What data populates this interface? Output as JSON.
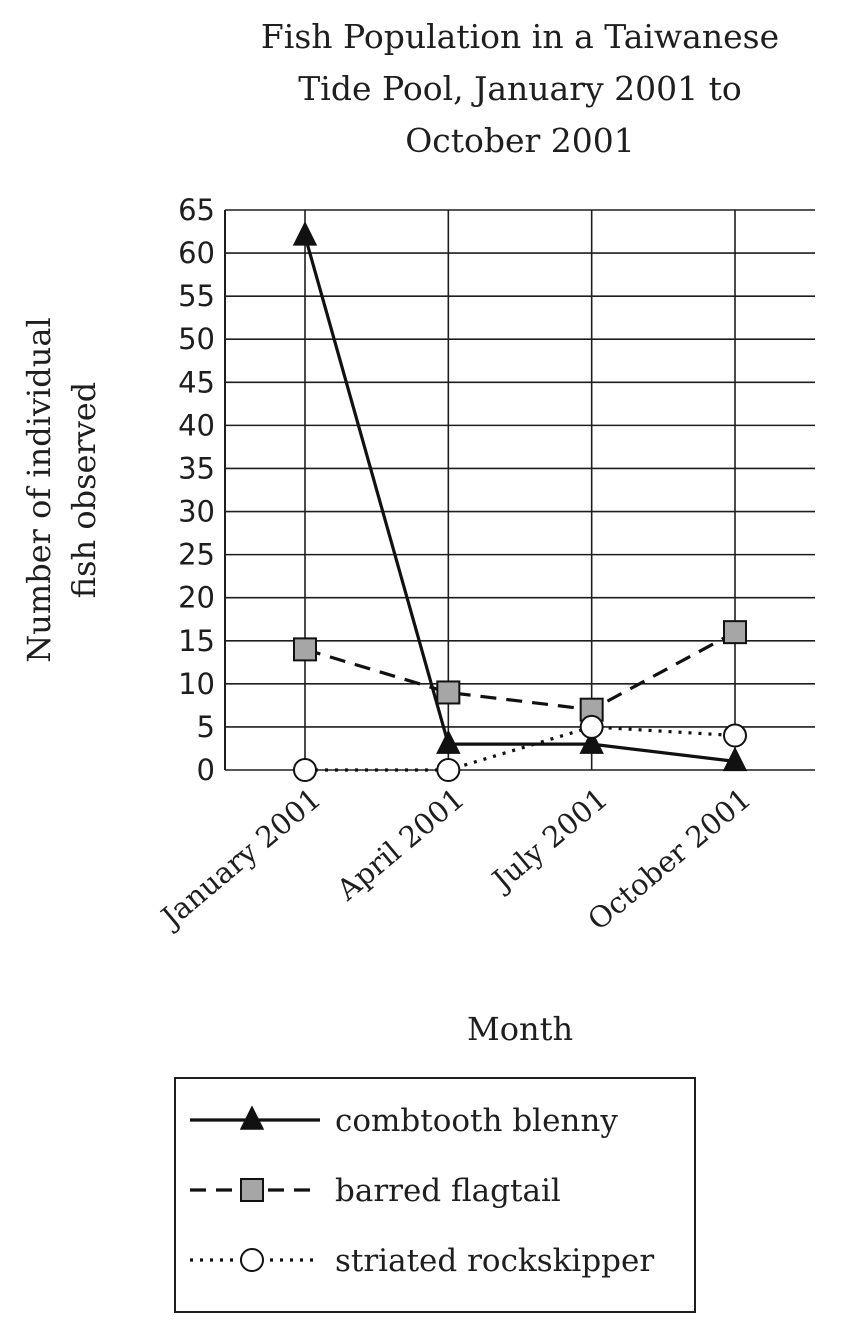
{
  "chart_data": {
    "type": "line",
    "title_lines": [
      "Fish Population in a Taiwanese",
      "Tide Pool, January 2001 to",
      "October 2001"
    ],
    "xlabel": "Month",
    "ylabel_lines": [
      "Number of individual",
      "fish observed"
    ],
    "categories": [
      "January 2001",
      "April 2001",
      "July 2001",
      "October 2001"
    ],
    "ylim": [
      0,
      65
    ],
    "yticks": [
      0,
      5,
      10,
      15,
      20,
      25,
      30,
      35,
      40,
      45,
      50,
      55,
      60,
      65
    ],
    "grid": true,
    "legend_position": "bottom",
    "series": [
      {
        "name": "combtooth blenny",
        "values": [
          62,
          3,
          3,
          1
        ],
        "line": "solid",
        "marker": "triangle",
        "marker_fill": "#111111"
      },
      {
        "name": "barred flagtail",
        "values": [
          14,
          9,
          7,
          16
        ],
        "line": "dashed",
        "marker": "square",
        "marker_fill": "#a6a6a6"
      },
      {
        "name": "striated rockskipper",
        "values": [
          0,
          0,
          5,
          4
        ],
        "line": "dotted",
        "marker": "circle",
        "marker_fill": "#ffffff"
      }
    ]
  }
}
